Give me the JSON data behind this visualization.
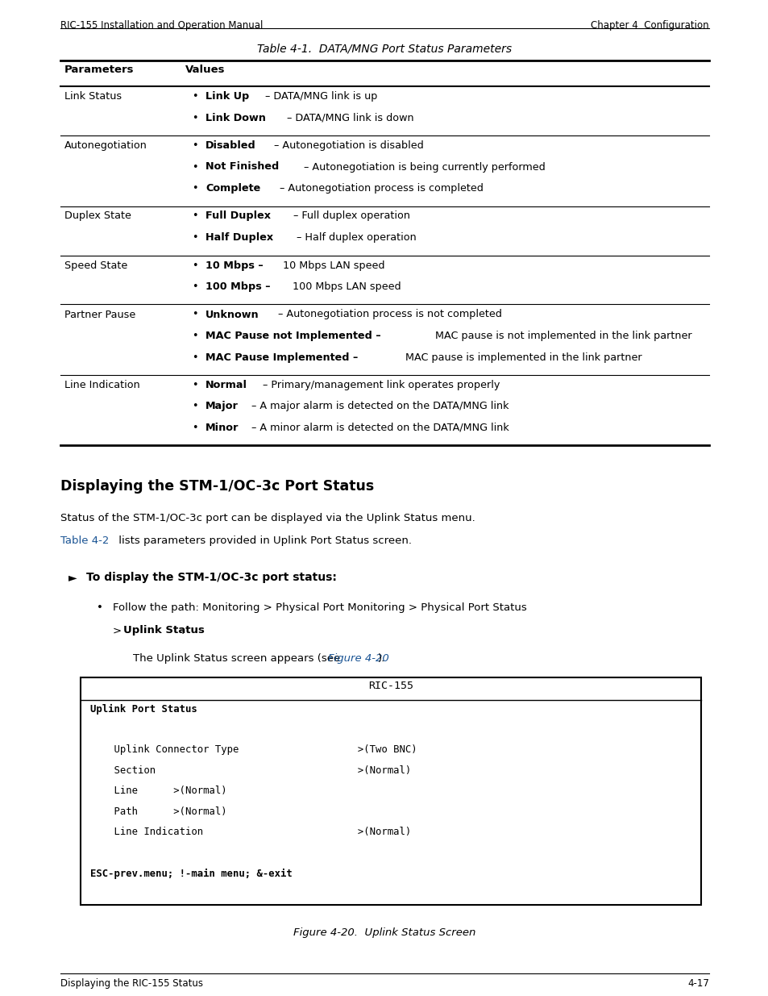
{
  "page_width": 9.54,
  "page_height": 12.35,
  "bg_color": "#ffffff",
  "header_left": "RIC-155 Installation and Operation Manual",
  "header_right": "Chapter 4  Configuration",
  "footer_left": "Displaying the RIC-155 Status",
  "footer_right": "4-17",
  "table_title": "Table 4-1.  DATA/MNG Port Status Parameters",
  "table_col1_header": "Parameters",
  "table_col2_header": "Values",
  "table_rows": [
    {
      "param": "Link Status",
      "bullets": [
        [
          [
            "Link Up",
            true
          ],
          [
            " – DATA/MNG link is up",
            false
          ]
        ],
        [
          [
            "Link Down",
            true
          ],
          [
            " – DATA/MNG link is down",
            false
          ]
        ]
      ]
    },
    {
      "param": "Autonegotiation",
      "bullets": [
        [
          [
            "Disabled",
            true
          ],
          [
            " – Autonegotiation is disabled",
            false
          ]
        ],
        [
          [
            "Not Finished",
            true
          ],
          [
            " – Autonegotiation is being currently performed",
            false
          ]
        ],
        [
          [
            "Complete",
            true
          ],
          [
            " – Autonegotiation process is completed",
            false
          ]
        ]
      ]
    },
    {
      "param": "Duplex State",
      "bullets": [
        [
          [
            "Full Duplex",
            true
          ],
          [
            " – Full duplex operation",
            false
          ]
        ],
        [
          [
            "Half Duplex",
            true
          ],
          [
            " – Half duplex operation",
            false
          ]
        ]
      ]
    },
    {
      "param": "Speed State",
      "bullets": [
        [
          [
            "10 Mbps –",
            true
          ],
          [
            " 10 Mbps LAN speed",
            false
          ]
        ],
        [
          [
            "100 Mbps –",
            true
          ],
          [
            " 100 Mbps LAN speed",
            false
          ]
        ]
      ]
    },
    {
      "param": "Partner Pause",
      "bullets": [
        [
          [
            "Unknown",
            true
          ],
          [
            " – Autonegotiation process is not completed",
            false
          ]
        ],
        [
          [
            "MAC Pause not Implemented –",
            true
          ],
          [
            " MAC pause is not implemented in the link partner",
            false
          ]
        ],
        [
          [
            "MAC Pause Implemented –",
            true
          ],
          [
            " MAC pause is implemented in the link partner",
            false
          ]
        ]
      ]
    },
    {
      "param": "Line Indication",
      "bullets": [
        [
          [
            "Normal",
            true
          ],
          [
            " – Primary/management link operates properly",
            false
          ]
        ],
        [
          [
            "Major",
            true
          ],
          [
            " – A major alarm is detected on the DATA/MNG link",
            false
          ]
        ],
        [
          [
            "Minor",
            true
          ],
          [
            " – A minor alarm is detected on the DATA/MNG link",
            false
          ]
        ]
      ]
    }
  ],
  "section_title": "Displaying the STM-1/OC-3c Port Status",
  "section_para1": "Status of the STM-1/OC-3c port can be displayed via the Uplink Status menu.",
  "section_para2_normal": " lists parameters provided in Uplink Port Status screen.",
  "section_para2_link": "Table 4-2",
  "section_arrow_text": "To display the STM-1/OC-3c port status:",
  "bullet1_line1": "Follow the path: Monitoring > Physical Port Monitoring > Physical Port Status",
  "bullet1_line2_normal": "> ",
  "bullet1_line2_bold": "Uplink Status",
  "bullet1_line2_end": ".",
  "screen_note": "The Uplink Status screen appears (see ",
  "screen_note_link": "Figure 4-20",
  "screen_note_end": ").",
  "terminal_title": "RIC-155",
  "terminal_lines": [
    "Uplink Port Status",
    "",
    "    Uplink Connector Type                    >(Two BNC)",
    "    Section                                  >(Normal)",
    "    Line      >(Normal)",
    "    Path      >(Normal)",
    "    Line Indication                          >(Normal)",
    "",
    "ESC-prev.menu; !-main menu; &-exit"
  ],
  "terminal_bold_lines": [
    0,
    8
  ],
  "figure_caption": "Figure 4-20.  Uplink Status Screen"
}
